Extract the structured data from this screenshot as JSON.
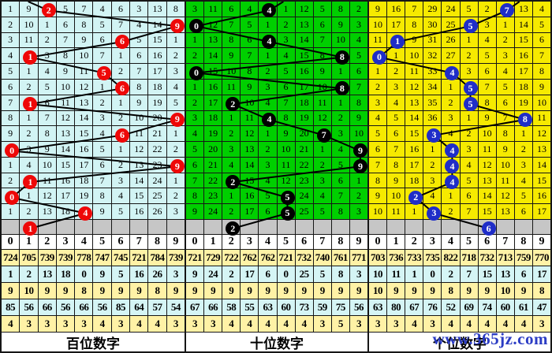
{
  "watermark": "www.365jz.com",
  "colors": {
    "grid_line": "#161616",
    "gray_row": "#c6c6c6",
    "stat_yellow": "#fff2a6",
    "stat_cyan": "#d5f5f5",
    "header_bg": "#ffffff",
    "line_stroke": "#000000",
    "watermark_blue": "#2b3cc4"
  },
  "chart_data": {
    "type": "line",
    "description": "3D lottery digit trend chart: drawn digit per period for each position, with per-column miss counts",
    "x": [
      1,
      2,
      3,
      4,
      5,
      6,
      7,
      8,
      9,
      10,
      11,
      12,
      13,
      14
    ],
    "series": [
      {
        "name": "百位数字",
        "values": [
          2,
          9,
          6,
          1,
          5,
          6,
          1,
          9,
          6,
          0,
          9,
          1,
          0,
          4
        ]
      },
      {
        "name": "十位数字",
        "values": [
          4,
          0,
          4,
          8,
          0,
          8,
          2,
          4,
          7,
          9,
          9,
          2,
          5,
          5
        ]
      },
      {
        "name": "个位数字",
        "values": [
          7,
          5,
          1,
          0,
          4,
          5,
          5,
          8,
          3,
          4,
          4,
          4,
          2,
          3
        ]
      }
    ],
    "next_row_marks": [
      1,
      2,
      6
    ],
    "ylim": [
      0,
      9
    ],
    "grid": true,
    "legend_position": "bottom"
  },
  "panels": [
    {
      "footer": "百位数字",
      "bg": "#d2f4f4",
      "circle_color": "#ee0808",
      "stub_dx": -26,
      "header": [
        "0",
        "1",
        "2",
        "3",
        "4",
        "5",
        "6",
        "7",
        "8",
        "9"
      ],
      "rows": [
        [
          "1",
          "9",
          "2",
          "5",
          "7",
          "4",
          "6",
          "3",
          "13",
          "8"
        ],
        [
          "2",
          "10",
          "1",
          "6",
          "8",
          "5",
          "7",
          "4",
          "14",
          "9"
        ],
        [
          "3",
          "11",
          "2",
          "7",
          "9",
          "6",
          "6",
          "5",
          "15",
          "1"
        ],
        [
          "4",
          "1",
          "3",
          "8",
          "10",
          "7",
          "1",
          "6",
          "16",
          "2"
        ],
        [
          "5",
          "1",
          "4",
          "9",
          "11",
          "5",
          "2",
          "7",
          "17",
          "3"
        ],
        [
          "6",
          "2",
          "5",
          "10",
          "12",
          "1",
          "6",
          "8",
          "18",
          "4"
        ],
        [
          "7",
          "1",
          "6",
          "11",
          "13",
          "2",
          "1",
          "9",
          "19",
          "5"
        ],
        [
          "8",
          "1",
          "7",
          "12",
          "14",
          "3",
          "2",
          "10",
          "20",
          "9"
        ],
        [
          "9",
          "2",
          "8",
          "13",
          "15",
          "4",
          "6",
          "11",
          "21",
          "1"
        ],
        [
          "0",
          "3",
          "9",
          "14",
          "16",
          "5",
          "1",
          "12",
          "22",
          "2"
        ],
        [
          "1",
          "4",
          "10",
          "15",
          "17",
          "6",
          "2",
          "13",
          "23",
          "9"
        ],
        [
          "2",
          "1",
          "11",
          "16",
          "18",
          "7",
          "3",
          "14",
          "24",
          "1"
        ],
        [
          "0",
          "1",
          "12",
          "17",
          "19",
          "8",
          "4",
          "15",
          "25",
          "2"
        ],
        [
          "1",
          "2",
          "13",
          "18",
          "4",
          "9",
          "5",
          "16",
          "26",
          "3"
        ]
      ],
      "circle_cols": [
        2,
        9,
        6,
        1,
        5,
        6,
        1,
        9,
        6,
        0,
        9,
        1,
        0,
        4
      ],
      "gray_circle": {
        "col": 1,
        "label": "1"
      },
      "stats": [
        [
          "724",
          "705",
          "739",
          "739",
          "778",
          "747",
          "745",
          "721",
          "784",
          "739"
        ],
        [
          "1",
          "2",
          "13",
          "18",
          "0",
          "9",
          "5",
          "16",
          "26",
          "3"
        ],
        [
          "9",
          "10",
          "9",
          "9",
          "8",
          "9",
          "9",
          "9",
          "8",
          "9"
        ],
        [
          "85",
          "56",
          "66",
          "56",
          "66",
          "56",
          "85",
          "64",
          "57",
          "54"
        ],
        [
          "4",
          "3",
          "3",
          "3",
          "3",
          "4",
          "3",
          "4",
          "4",
          "3"
        ]
      ]
    },
    {
      "footer": "十位数字",
      "bg": "#00cf00",
      "circle_color": "#000000",
      "stub_dx": 18,
      "header": [
        "0",
        "1",
        "2",
        "3",
        "4",
        "5",
        "6",
        "7",
        "8",
        "9"
      ],
      "rows": [
        [
          "3",
          "11",
          "6",
          "4",
          "4",
          "1",
          "12",
          "5",
          "8",
          "2"
        ],
        [
          "0",
          "12",
          "7",
          "5",
          "1",
          "2",
          "13",
          "6",
          "9",
          "3"
        ],
        [
          "1",
          "13",
          "8",
          "6",
          "4",
          "3",
          "14",
          "7",
          "10",
          "4"
        ],
        [
          "2",
          "14",
          "9",
          "7",
          "1",
          "4",
          "15",
          "8",
          "8",
          "5"
        ],
        [
          "0",
          "15",
          "10",
          "8",
          "2",
          "5",
          "16",
          "9",
          "1",
          "6"
        ],
        [
          "1",
          "16",
          "11",
          "9",
          "3",
          "6",
          "17",
          "10",
          "8",
          "7"
        ],
        [
          "2",
          "17",
          "2",
          "10",
          "4",
          "7",
          "18",
          "11",
          "1",
          "8"
        ],
        [
          "3",
          "18",
          "1",
          "11",
          "4",
          "8",
          "19",
          "12",
          "2",
          "9"
        ],
        [
          "4",
          "19",
          "2",
          "12",
          "1",
          "9",
          "20",
          "7",
          "3",
          "10"
        ],
        [
          "5",
          "20",
          "3",
          "13",
          "2",
          "10",
          "21",
          "1",
          "4",
          "9"
        ],
        [
          "6",
          "21",
          "4",
          "14",
          "3",
          "11",
          "22",
          "2",
          "5",
          "9"
        ],
        [
          "7",
          "22",
          "2",
          "15",
          "4",
          "12",
          "23",
          "3",
          "6",
          "1"
        ],
        [
          "8",
          "23",
          "1",
          "16",
          "5",
          "5",
          "24",
          "4",
          "7",
          "2"
        ],
        [
          "9",
          "24",
          "2",
          "17",
          "6",
          "5",
          "25",
          "5",
          "8",
          "3"
        ]
      ],
      "circle_cols": [
        4,
        0,
        4,
        8,
        0,
        8,
        2,
        4,
        7,
        9,
        9,
        2,
        5,
        5
      ],
      "gray_circle": {
        "col": 2,
        "label": "2"
      },
      "stats": [
        [
          "721",
          "729",
          "722",
          "762",
          "762",
          "721",
          "732",
          "740",
          "761",
          "771"
        ],
        [
          "9",
          "24",
          "2",
          "17",
          "6",
          "0",
          "25",
          "5",
          "8",
          "3"
        ],
        [
          "9",
          "9",
          "9",
          "9",
          "9",
          "9",
          "9",
          "9",
          "9",
          "9"
        ],
        [
          "67",
          "66",
          "58",
          "55",
          "63",
          "60",
          "73",
          "59",
          "75",
          "56"
        ],
        [
          "3",
          "3",
          "4",
          "4",
          "4",
          "4",
          "4",
          "3",
          "5",
          "3"
        ]
      ]
    },
    {
      "footer": "个位数字",
      "bg": "#f6ea00",
      "circle_color": "#1f2dc8",
      "stub_dx": 16,
      "header": [
        "0",
        "1",
        "2",
        "3",
        "4",
        "5",
        "6",
        "7",
        "8",
        "9"
      ],
      "rows": [
        [
          "9",
          "16",
          "7",
          "29",
          "24",
          "5",
          "2",
          "7",
          "13",
          "4"
        ],
        [
          "10",
          "17",
          "8",
          "30",
          "25",
          "5",
          "3",
          "1",
          "14",
          "5"
        ],
        [
          "11",
          "1",
          "9",
          "31",
          "26",
          "1",
          "4",
          "2",
          "15",
          "6"
        ],
        [
          "0",
          "1",
          "10",
          "32",
          "27",
          "2",
          "5",
          "3",
          "16",
          "7"
        ],
        [
          "1",
          "2",
          "11",
          "33",
          "4",
          "3",
          "6",
          "4",
          "17",
          "8"
        ],
        [
          "2",
          "3",
          "12",
          "34",
          "1",
          "5",
          "7",
          "5",
          "18",
          "9"
        ],
        [
          "3",
          "4",
          "13",
          "35",
          "2",
          "5",
          "8",
          "6",
          "19",
          "10"
        ],
        [
          "4",
          "5",
          "14",
          "36",
          "3",
          "1",
          "9",
          "7",
          "8",
          "11"
        ],
        [
          "5",
          "6",
          "15",
          "3",
          "4",
          "2",
          "10",
          "8",
          "1",
          "12"
        ],
        [
          "6",
          "7",
          "16",
          "1",
          "4",
          "3",
          "11",
          "9",
          "2",
          "13"
        ],
        [
          "7",
          "8",
          "17",
          "2",
          "4",
          "4",
          "12",
          "10",
          "3",
          "14"
        ],
        [
          "8",
          "9",
          "18",
          "3",
          "4",
          "5",
          "13",
          "11",
          "4",
          "15"
        ],
        [
          "9",
          "10",
          "2",
          "4",
          "1",
          "6",
          "14",
          "12",
          "5",
          "16"
        ],
        [
          "10",
          "11",
          "1",
          "3",
          "2",
          "7",
          "15",
          "13",
          "6",
          "17"
        ]
      ],
      "circle_cols": [
        7,
        5,
        1,
        0,
        4,
        5,
        5,
        8,
        3,
        4,
        4,
        4,
        2,
        3
      ],
      "gray_circle": {
        "col": 6,
        "label": "6"
      },
      "stats": [
        [
          "703",
          "736",
          "733",
          "735",
          "822",
          "718",
          "732",
          "713",
          "759",
          "770"
        ],
        [
          "10",
          "11",
          "1",
          "0",
          "2",
          "7",
          "15",
          "13",
          "6",
          "17"
        ],
        [
          "10",
          "9",
          "9",
          "9",
          "8",
          "9",
          "9",
          "10",
          "9",
          "8"
        ],
        [
          "63",
          "80",
          "67",
          "76",
          "52",
          "69",
          "74",
          "60",
          "61",
          "47"
        ],
        [
          "3",
          "3",
          "4",
          "3",
          "4",
          "4",
          "4",
          "4",
          "4",
          "3"
        ]
      ]
    }
  ]
}
